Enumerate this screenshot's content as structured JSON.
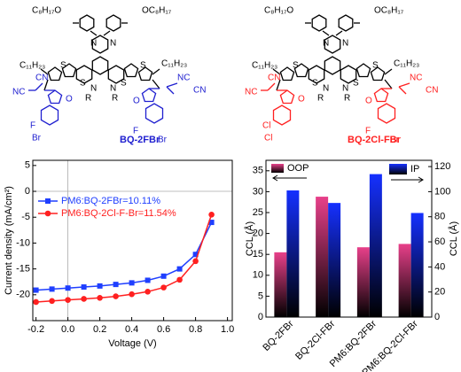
{
  "structures": [
    {
      "name": "BQ-2FBr",
      "color": "#2020d0",
      "labels": [
        "C₈H₁₇O",
        "OC₈H₁₇",
        "N",
        "N",
        "S",
        "S",
        "S",
        "S",
        "N",
        "N",
        "R",
        "R",
        "C₁₁H₂₃",
        "C₁₁H₂₃",
        "NC",
        "CN",
        "CN",
        "NC",
        "O",
        "O",
        "F",
        "Br",
        "F",
        "Br"
      ]
    },
    {
      "name": "BQ-2Cl-FBr",
      "color": "#ff2020",
      "labels": [
        "C₈H₁₇O",
        "OC₈H₁₇",
        "N",
        "N",
        "S",
        "S",
        "S",
        "S",
        "N",
        "N",
        "R",
        "R",
        "C₁₁H₂₃",
        "C₁₁H₂₃",
        "NC",
        "CN",
        "CN",
        "NC",
        "O",
        "O",
        "Cl",
        "Cl",
        "F",
        "Br"
      ]
    }
  ],
  "chart_data": [
    {
      "type": "line",
      "xlabel": "Voltage (V)",
      "ylabel": "Current density (mA/cm²)",
      "x": [
        -0.2,
        -0.1,
        0,
        0.1,
        0.2,
        0.3,
        0.4,
        0.5,
        0.6,
        0.7,
        0.8,
        0.9
      ],
      "series": [
        {
          "name": "PM6:BQ-2FBr=10.11%",
          "color": "#1f3fff",
          "marker": "square",
          "values": [
            -19.1,
            -18.9,
            -18.7,
            -18.5,
            -18.3,
            -18.0,
            -17.7,
            -17.2,
            -16.4,
            -15.0,
            -12.2,
            -6.0
          ]
        },
        {
          "name": "PM6:BQ-2Cl-F-Br=11.54%",
          "color": "#ff2020",
          "marker": "circle",
          "values": [
            -21.4,
            -21.2,
            -21.0,
            -20.8,
            -20.6,
            -20.3,
            -19.9,
            -19.4,
            -18.6,
            -17.1,
            -13.5,
            -4.5
          ]
        }
      ],
      "xlim": [
        -0.22,
        1.03
      ],
      "ylim": [
        -25,
        6
      ],
      "xticks": [
        -0.2,
        {
          "value": 0,
          "label": "0.0"
        },
        0.2,
        0.4,
        0.6,
        0.8,
        {
          "value": 1,
          "label": "1.0"
        }
      ],
      "yticks": [
        5,
        0,
        -5,
        -10,
        -15,
        -20
      ],
      "legend": "upper left"
    },
    {
      "type": "bar",
      "ylabel": "CCL (Å)",
      "y2label": "CCL (Å)",
      "categories": [
        "BQ-2FBr",
        "BQ-2Cl-FBr",
        "PM6:BQ-2FBr",
        "PM6:BQ-2Cl-FBr"
      ],
      "series": [
        {
          "name": "OOP",
          "color": "#e8408a",
          "axis": "y",
          "values": [
            15.5,
            28.8,
            16.7,
            17.5
          ]
        },
        {
          "name": "IP",
          "color": "#1530ff",
          "axis": "y2",
          "values": [
            101,
            91,
            114,
            83
          ]
        }
      ],
      "ylim": [
        0,
        37.5
      ],
      "yticks": [
        0,
        5,
        10,
        15,
        20,
        25,
        30,
        35
      ],
      "y2lim": [
        0,
        125
      ],
      "y2ticks": [
        0,
        20,
        40,
        60,
        80,
        100,
        120
      ]
    }
  ]
}
